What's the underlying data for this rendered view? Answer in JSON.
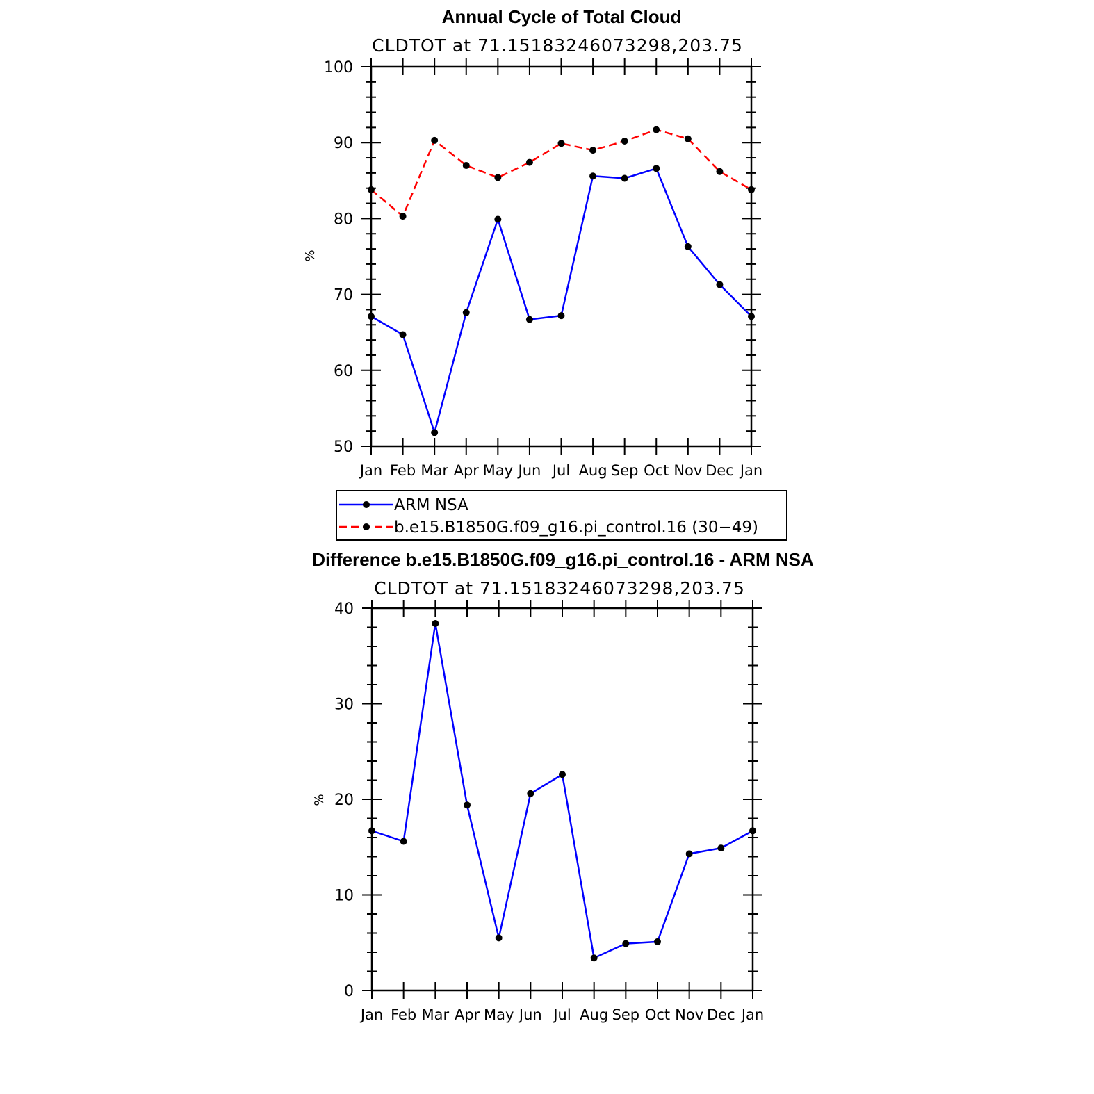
{
  "chart_data": [
    {
      "type": "line",
      "title": "Annual Cycle of Total Cloud",
      "subtitle": "CLDTOT at 71.15183246073298,203.75",
      "ylabel": "%",
      "ylim": [
        50,
        100
      ],
      "yticks": [
        50,
        60,
        70,
        80,
        90,
        100
      ],
      "categories": [
        "Jan",
        "Feb",
        "Mar",
        "Apr",
        "May",
        "Jun",
        "Jul",
        "Aug",
        "Sep",
        "Oct",
        "Nov",
        "Dec",
        "Jan"
      ],
      "series": [
        {
          "name": "ARM NSA",
          "color": "#0000ff",
          "dash": false,
          "values": [
            67.1,
            64.7,
            51.8,
            67.6,
            79.9,
            66.7,
            67.2,
            85.6,
            85.3,
            86.6,
            76.3,
            71.3,
            67.1
          ]
        },
        {
          "name": "b.e15.B1850G.f09_g16.pi_control.16 (30−49)",
          "color": "#ff0000",
          "dash": true,
          "values": [
            83.8,
            80.3,
            90.3,
            87.0,
            85.4,
            87.4,
            89.9,
            89.0,
            90.2,
            91.7,
            90.5,
            86.2,
            83.8
          ]
        }
      ],
      "legend": "below"
    },
    {
      "type": "line",
      "title": "Difference b.e15.B1850G.f09_g16.pi_control.16 - ARM NSA",
      "subtitle": "CLDTOT at 71.15183246073298,203.75",
      "ylabel": "%",
      "ylim": [
        0,
        40
      ],
      "yticks": [
        0,
        10,
        20,
        30,
        40
      ],
      "categories": [
        "Jan",
        "Feb",
        "Mar",
        "Apr",
        "May",
        "Jun",
        "Jul",
        "Aug",
        "Sep",
        "Oct",
        "Nov",
        "Dec",
        "Jan"
      ],
      "series": [
        {
          "color": "#0000ff",
          "dash": false,
          "values": [
            16.7,
            15.6,
            38.4,
            19.4,
            5.5,
            20.6,
            22.6,
            3.4,
            4.9,
            5.1,
            14.3,
            14.9,
            16.7
          ]
        }
      ]
    }
  ]
}
